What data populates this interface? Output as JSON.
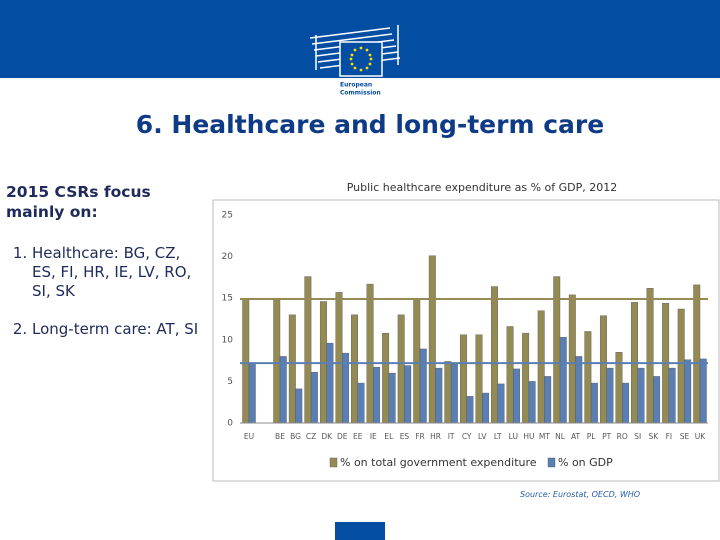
{
  "header": {
    "logo_lines": [
      "European",
      "Commission"
    ]
  },
  "title": "6. Healthcare and long-term care",
  "sidebar": {
    "heading": "2015 CSRs focus mainly on:",
    "items": [
      "Healthcare: BG, CZ, ES, FI, HR, IE, LV, RO, SI, SK",
      "Long-term care: AT, SI"
    ]
  },
  "chart_data": {
    "type": "bar",
    "title": "Public healthcare expenditure as % of GDP, 2012",
    "categories": [
      "EU",
      "BE",
      "BG",
      "CZ",
      "DK",
      "DE",
      "EE",
      "IE",
      "EL",
      "ES",
      "FR",
      "HR",
      "IT",
      "CY",
      "LV",
      "LT",
      "LU",
      "HU",
      "MT",
      "NL",
      "AT",
      "PL",
      "PT",
      "RO",
      "SI",
      "SK",
      "FI",
      "SE",
      "UK"
    ],
    "series": [
      {
        "name": "% on total government expenditure",
        "color": "#948a54",
        "values": [
          14.9,
          14.8,
          13.0,
          17.6,
          14.6,
          15.7,
          13.0,
          16.7,
          10.8,
          13.0,
          14.8,
          20.1,
          7.4,
          10.6,
          10.6,
          16.4,
          11.6,
          10.8,
          13.5,
          17.6,
          15.4,
          11.0,
          12.9,
          8.5,
          14.5,
          16.2,
          14.4,
          13.7,
          16.6
        ]
      },
      {
        "name": "% on GDP",
        "color": "#5a7fb5",
        "values": [
          7.2,
          8.0,
          4.1,
          6.1,
          9.6,
          8.4,
          4.8,
          6.7,
          6.0,
          6.9,
          8.9,
          6.6,
          7.1,
          3.2,
          3.6,
          4.7,
          6.5,
          5.0,
          5.6,
          10.3,
          8.0,
          4.8,
          6.6,
          4.8,
          6.6,
          5.6,
          6.6,
          7.6,
          7.7
        ]
      }
    ],
    "ylim": [
      0,
      25
    ],
    "yticks": [
      0,
      5,
      10,
      15,
      20,
      25
    ],
    "grid": false,
    "legend": "bottom"
  },
  "source": "Source: Eurostat, OECD, WHO"
}
